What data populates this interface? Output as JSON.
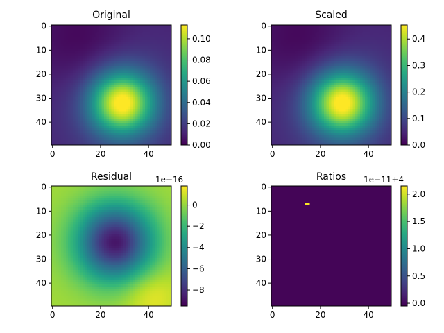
{
  "chart_data": [
    {
      "type": "heatmap",
      "title": "Original",
      "grid_size": [
        50,
        50
      ],
      "x_ticks": [
        0,
        20,
        40
      ],
      "y_ticks": [
        0,
        10,
        20,
        30,
        40
      ],
      "colormap": "viridis",
      "field": {
        "type": "blob-dip",
        "peak_center": [
          29,
          32
        ],
        "peak_sigma": 9,
        "dip_center": [
          13,
          8
        ],
        "dip_sigma": 14
      },
      "colorbar": {
        "vmin": 0.0,
        "vmax": 0.113,
        "ticks": [
          "0.00",
          "0.02",
          "0.04",
          "0.06",
          "0.08",
          "0.10"
        ],
        "tick_values": [
          0.0,
          0.02,
          0.04,
          0.06,
          0.08,
          0.1
        ],
        "offset_text": ""
      }
    },
    {
      "type": "heatmap",
      "title": "Scaled",
      "grid_size": [
        50,
        50
      ],
      "x_ticks": [
        0,
        20,
        40
      ],
      "y_ticks": [
        0,
        10,
        20,
        30,
        40
      ],
      "colormap": "viridis",
      "field": {
        "type": "blob-dip",
        "peak_center": [
          29,
          32
        ],
        "peak_sigma": 9,
        "dip_center": [
          13,
          8
        ],
        "dip_sigma": 14
      },
      "colorbar": {
        "vmin": 0.0,
        "vmax": 0.453,
        "ticks": [
          "0.0",
          "0.1",
          "0.2",
          "0.3",
          "0.4"
        ],
        "tick_values": [
          0.0,
          0.1,
          0.2,
          0.3,
          0.4
        ],
        "offset_text": ""
      }
    },
    {
      "type": "heatmap",
      "title": "Residual",
      "grid_size": [
        50,
        50
      ],
      "x_ticks": [
        0,
        20,
        40
      ],
      "y_ticks": [
        0,
        10,
        20,
        30,
        40
      ],
      "colormap": "viridis",
      "field": {
        "type": "ring",
        "dip_center": [
          26,
          23
        ],
        "dip_sigma": 11,
        "bump_center": [
          41,
          45
        ],
        "bump_sigma": 8
      },
      "colorbar": {
        "vmin": -9.5,
        "vmax": 1.8,
        "ticks": [
          "0",
          "−2",
          "−4",
          "−6",
          "−8"
        ],
        "tick_values": [
          0,
          -2,
          -4,
          -6,
          -8
        ],
        "offset_text": "1e−16"
      }
    },
    {
      "type": "heatmap",
      "title": "Ratios",
      "grid_size": [
        50,
        50
      ],
      "x_ticks": [
        0,
        20,
        40
      ],
      "y_ticks": [
        0,
        10,
        20,
        30,
        40
      ],
      "colormap": "viridis",
      "field": {
        "type": "single-pixel",
        "hot_cell": [
          14,
          7
        ],
        "hot_width": 2
      },
      "colorbar": {
        "vmin": -0.05,
        "vmax": 2.15,
        "ticks": [
          "0.0",
          "0.5",
          "1.0",
          "1.5",
          "2.0"
        ],
        "tick_values": [
          0.0,
          0.5,
          1.0,
          1.5,
          2.0
        ],
        "offset_text": "1e−11+4"
      }
    }
  ]
}
